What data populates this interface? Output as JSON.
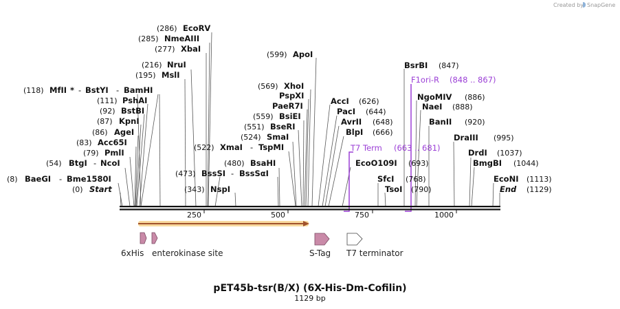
{
  "credit": {
    "prefix": "Created by",
    "brand": "SnapGene"
  },
  "title": "pET45b-tsr(B/X) (6X-His-Dm-Cofilin)",
  "subtitle": "1129 bp",
  "ticks": [
    "250",
    "500",
    "750",
    "1000"
  ],
  "primers": [
    {
      "name": "T7 Term",
      "range": "(663 .. 681)"
    },
    {
      "name": "F1ori-R",
      "range": "(848 .. 867)"
    }
  ],
  "features": [
    {
      "name": "6xHis",
      "color": "#c98aa8"
    },
    {
      "name": "enterokinase site",
      "color": "#c98aa8"
    },
    {
      "name": "S-Tag",
      "color": "#c98aa8"
    },
    {
      "name": "T7 terminator",
      "color": "#ffffff"
    }
  ],
  "sites": [
    {
      "pos": "(0)",
      "name": "Start"
    },
    {
      "pos": "(8)",
      "name": "BaeGI",
      "sep": "-",
      "name2": "Bme1580I"
    },
    {
      "pos": "(54)",
      "name": "BtgI",
      "sep": "-",
      "name2": "NcoI"
    },
    {
      "pos": "(79)",
      "name": "PmlI"
    },
    {
      "pos": "(83)",
      "name": "Acc65I"
    },
    {
      "pos": "(86)",
      "name": "AgeI"
    },
    {
      "pos": "(87)",
      "name": "KpnI"
    },
    {
      "pos": "(92)",
      "name": "BstBI"
    },
    {
      "pos": "(111)",
      "name": "PshAI"
    },
    {
      "pos": "(118)",
      "name": "MfII",
      "star": "*",
      "sep": "-",
      "name2": "BstYI",
      "sep2": "-",
      "name3": "BamHI"
    },
    {
      "pos": "(195)",
      "name": "MslI"
    },
    {
      "pos": "(216)",
      "name": "NruI"
    },
    {
      "pos": "(277)",
      "name": "XbaI"
    },
    {
      "pos": "(285)",
      "name": "NmeAIII"
    },
    {
      "pos": "(286)",
      "name": "EcoRV"
    },
    {
      "pos": "(343)",
      "name": "NspI"
    },
    {
      "pos": "(473)",
      "name": "BssSI",
      "sep": "-",
      "name2": "BssSαI"
    },
    {
      "pos": "(480)",
      "name": "BsaHI"
    },
    {
      "pos": "(522)",
      "name": "XmaI",
      "sep": "-",
      "name2": "TspMI"
    },
    {
      "pos": "(524)",
      "name": "SmaI"
    },
    {
      "pos": "(551)",
      "name": "BseRI"
    },
    {
      "pos": "(559)",
      "name": "BsiEI"
    },
    {
      "name": "PaeR7I"
    },
    {
      "name": "PspXI"
    },
    {
      "pos": "(569)",
      "name": "XhoI"
    },
    {
      "pos": "(599)",
      "name": "ApoI"
    },
    {
      "pos": "(626)",
      "name": "AccI"
    },
    {
      "pos": "(644)",
      "name": "PacI"
    },
    {
      "pos": "(648)",
      "name": "AvrII"
    },
    {
      "pos": "(666)",
      "name": "BlpI"
    },
    {
      "pos": "(693)",
      "name": "EcoO109I"
    },
    {
      "pos": "(768)",
      "name": "SfcI"
    },
    {
      "pos": "(790)",
      "name": "TsoI"
    },
    {
      "pos": "(847)",
      "name": "BsrBI"
    },
    {
      "pos": "(886)",
      "name": "NgoMIV"
    },
    {
      "pos": "(888)",
      "name": "NaeI"
    },
    {
      "pos": "(920)",
      "name": "BanII"
    },
    {
      "pos": "(995)",
      "name": "DraIII"
    },
    {
      "pos": "(1037)",
      "name": "DrdI"
    },
    {
      "pos": "(1044)",
      "name": "BmgBI"
    },
    {
      "pos": "(1113)",
      "name": "EcoNI"
    },
    {
      "pos": "(1129)",
      "name": "End"
    }
  ]
}
